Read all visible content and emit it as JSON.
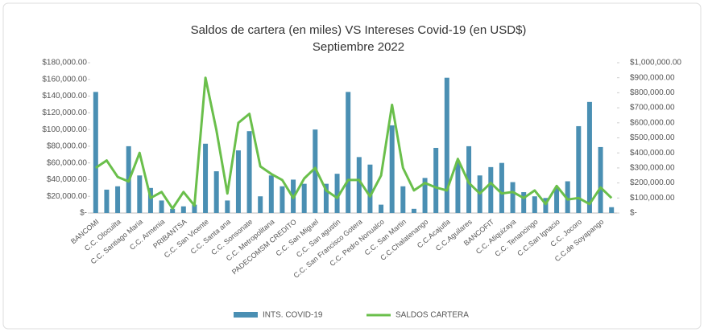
{
  "chart_data": {
    "type": "bar_line",
    "title": "Saldos de cartera (en miles) VS Intereses Covid-19 (en USD$)",
    "subtitle": "Septiembre 2022",
    "categories": [
      "BANCOMI",
      null,
      "C.C. Olocuilta",
      null,
      "C.C. Santiago Maria",
      null,
      "C.C. Armenia",
      null,
      "PRIBANTSA",
      null,
      "C.C. San Vicente",
      null,
      "C.C. Santa ana",
      null,
      "C.C. Sonsonate",
      null,
      "C.C. Metropolitana",
      null,
      "PADECOMSM CREDITO",
      null,
      "C.C. San Miguel",
      null,
      "C.C. San agustin",
      null,
      "C.C. San Francisco Gotera",
      null,
      "C.C. Pedro Nonualco",
      null,
      "C.C. San Martin",
      null,
      "C.C.Chalatenango",
      null,
      "C.C.Acajutla",
      null,
      "C.C.Aguilares",
      null,
      "BANCOFIT",
      null,
      "C.C. Atiquizaya",
      null,
      "C.C. Tenancingo",
      null,
      "C.C.San Ignacio",
      null,
      "C.C. Jocoro",
      null,
      "C.C.de Soyapango",
      null
    ],
    "series": [
      {
        "name": "INTS. COVID-19",
        "color": "#4a8fb3",
        "type": "bar",
        "axis": "y",
        "values": [
          145000,
          28000,
          32000,
          80000,
          45000,
          30000,
          15000,
          5000,
          8000,
          10000,
          83000,
          50000,
          15000,
          75000,
          98000,
          20000,
          45000,
          32000,
          40000,
          35000,
          100000,
          35000,
          47000,
          145000,
          67000,
          58000,
          10000,
          105000,
          32000,
          5000,
          42000,
          78000,
          162000,
          62000,
          80000,
          45000,
          55000,
          60000,
          37000,
          25000,
          20000,
          18000,
          30000,
          38000,
          104000,
          133000,
          79000,
          7000
        ]
      },
      {
        "name": "SALDOS CARTERA",
        "color": "#6abf4b",
        "type": "line",
        "axis": "y2",
        "values": [
          300000,
          350000,
          240000,
          210000,
          400000,
          100000,
          140000,
          30000,
          140000,
          50000,
          900000,
          550000,
          130000,
          600000,
          660000,
          310000,
          260000,
          220000,
          100000,
          230000,
          300000,
          150000,
          100000,
          220000,
          220000,
          110000,
          250000,
          720000,
          300000,
          150000,
          200000,
          170000,
          150000,
          360000,
          200000,
          130000,
          200000,
          130000,
          140000,
          100000,
          150000,
          60000,
          180000,
          90000,
          100000,
          60000,
          170000,
          100000
        ]
      }
    ],
    "ylim": [
      0,
      180000
    ],
    "yticks": [
      {
        "value": 0,
        "label": "$-"
      },
      {
        "value": 20000,
        "label": "$20,000.00"
      },
      {
        "value": 40000,
        "label": "$40,000.00"
      },
      {
        "value": 60000,
        "label": "$60,000.00"
      },
      {
        "value": 80000,
        "label": "$80,000.00"
      },
      {
        "value": 100000,
        "label": "$100,000.00"
      },
      {
        "value": 120000,
        "label": "$120,000.00"
      },
      {
        "value": 140000,
        "label": "$140,000.00"
      },
      {
        "value": 160000,
        "label": "$160,000.00"
      },
      {
        "value": 180000,
        "label": "$180,000.00"
      }
    ],
    "y2lim": [
      0,
      1000000
    ],
    "y2ticks": [
      {
        "value": 0,
        "label": "$-"
      },
      {
        "value": 100000,
        "label": "$100,000.00"
      },
      {
        "value": 200000,
        "label": "$200,000.00"
      },
      {
        "value": 300000,
        "label": "$300,000.00"
      },
      {
        "value": 400000,
        "label": "$400,000.00"
      },
      {
        "value": 500000,
        "label": "$500,000.00"
      },
      {
        "value": 600000,
        "label": "$600,000.00"
      },
      {
        "value": 700000,
        "label": "$700,000.00"
      },
      {
        "value": 800000,
        "label": "$800,000.00"
      },
      {
        "value": 900000,
        "label": "$900,000.00"
      },
      {
        "value": 1000000,
        "label": "$1,000,000.00"
      }
    ],
    "legend": "bottom"
  }
}
